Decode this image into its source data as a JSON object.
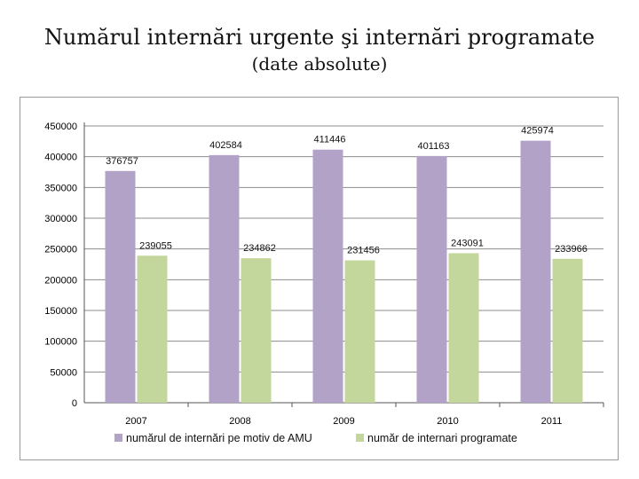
{
  "title": "Numărul internări urgente şi internări programate",
  "subtitle": "(date absolute)",
  "colors": {
    "series1": "#b2a2c7",
    "series2": "#c3d69b",
    "grid": "#8c8c8c",
    "axis": "#555555"
  },
  "chart_data": {
    "type": "bar",
    "categories": [
      "2007",
      "2008",
      "2009",
      "2010",
      "2011"
    ],
    "series": [
      {
        "name": "numărul de internări pe motiv de AMU",
        "values": [
          376757,
          402584,
          411446,
          401163,
          425974
        ]
      },
      {
        "name": "număr de internari programate",
        "values": [
          239055,
          234862,
          231456,
          243091,
          233966
        ]
      }
    ],
    "value_labels": [
      [
        "376757",
        "402584",
        "411446",
        "401163",
        "425974"
      ],
      [
        "239055",
        "234862",
        "231456",
        "243091",
        "233966"
      ]
    ],
    "yticks": [
      "0",
      "50000",
      "100000",
      "150000",
      "200000",
      "250000",
      "300000",
      "350000",
      "400000",
      "450000"
    ],
    "ylim": [
      0,
      450000
    ],
    "grid": true,
    "legend": "bottom"
  }
}
